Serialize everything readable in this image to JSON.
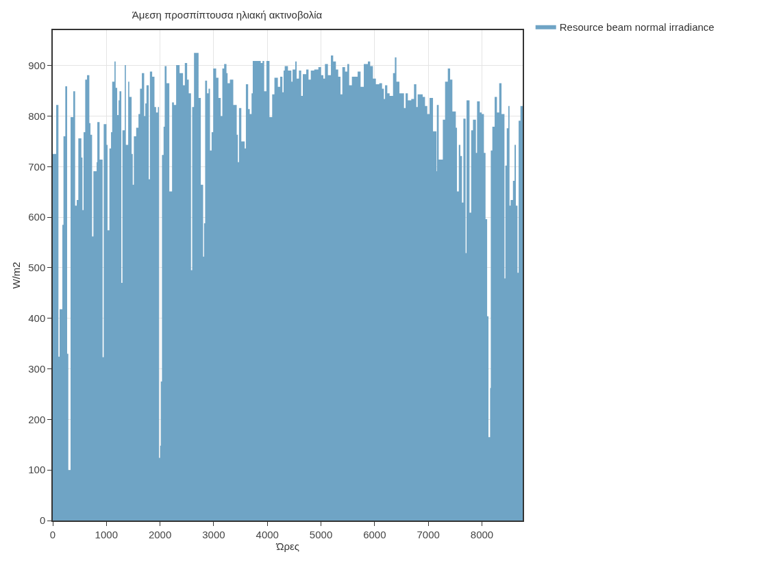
{
  "chart_data": {
    "type": "area",
    "title": "Άμεση προσπίπτουσα ηλιακή ακτινοβολία",
    "xlabel": "Ώρες",
    "ylabel": "W/m2",
    "xlim": [
      0,
      8760
    ],
    "xticks": [
      0,
      1000,
      2000,
      3000,
      4000,
      5000,
      6000,
      7000,
      8000
    ],
    "ylim": [
      0,
      970
    ],
    "yticks": [
      0,
      100,
      200,
      300,
      400,
      500,
      600,
      700,
      800,
      900
    ],
    "grid": true,
    "legend": "top right",
    "series": [
      {
        "name": "Resource beam normal irradiance",
        "color": "#6fa4c5",
        "x": [
          0,
          64,
          106,
          128,
          179,
          200,
          234,
          268,
          290,
          332,
          383,
          417,
          447,
          477,
          533,
          554,
          575,
          605,
          639,
          682,
          703,
          733,
          758,
          818,
          831,
          873,
          929,
          950,
          1001,
          1022,
          1056,
          1086,
          1108,
          1150,
          1172,
          1201,
          1227,
          1244,
          1278,
          1299,
          1342,
          1363,
          1406,
          1427,
          1470,
          1491,
          1512,
          1555,
          1598,
          1627,
          1661,
          1704,
          1725,
          1747,
          1789,
          1811,
          1853,
          1896,
          1926,
          1960,
          1981,
          2002,
          2015,
          2036,
          2066,
          2087,
          2121,
          2173,
          2224,
          2258,
          2300,
          2364,
          2428,
          2462,
          2505,
          2535,
          2577,
          2599,
          2633,
          2718,
          2760,
          2803,
          2820,
          2841,
          2876,
          2905,
          2931,
          2961,
          2991,
          3046,
          3089,
          3131,
          3161,
          3195,
          3238,
          3259,
          3302,
          3365,
          3429,
          3451,
          3472,
          3515,
          3578,
          3600,
          3642,
          3672,
          3706,
          3728,
          3877,
          3911,
          3941,
          3983,
          4040,
          4090,
          4132,
          4196,
          4239,
          4281,
          4303,
          4324,
          4384,
          4448,
          4470,
          4521,
          4546,
          4589,
          4631,
          4661,
          4725,
          4768,
          4810,
          4874,
          4951,
          5002,
          5044,
          5074,
          5129,
          5185,
          5227,
          5278,
          5321,
          5364,
          5398,
          5449,
          5491,
          5525,
          5576,
          5683,
          5738,
          5798,
          5874,
          5917,
          5968,
          6023,
          6087,
          6138,
          6172,
          6194,
          6236,
          6279,
          6343,
          6377,
          6406,
          6462,
          6547,
          6577,
          6619,
          6683,
          6734,
          6777,
          6802,
          6896,
          6939,
          6981,
          7024,
          7088,
          7151,
          7160,
          7194,
          7271,
          7313,
          7364,
          7407,
          7449,
          7513,
          7535,
          7569,
          7598,
          7628,
          7654,
          7696,
          7713,
          7769,
          7799,
          7833,
          7888,
          7909,
          7960,
          7994,
          8037,
          8067,
          8097,
          8122,
          8152,
          8165,
          8194,
          8237,
          8280,
          8322,
          8365,
          8420,
          8437,
          8463,
          8492,
          8514,
          8535,
          8578,
          8608,
          8633,
          8663,
          8684,
          8718,
          8760
        ],
        "values": [
          725,
          822,
          324,
          418,
          585,
          760,
          859,
          330,
          100,
          798,
          849,
          623,
          634,
          756,
          718,
          614,
          768,
          872,
          881,
          786,
          763,
          562,
          691,
          709,
          788,
          714,
          323,
          784,
          743,
          574,
          736,
          768,
          868,
          908,
          856,
          802,
          831,
          849,
          470,
          772,
          901,
          743,
          868,
          838,
          725,
          664,
          760,
          777,
          804,
          854,
          885,
          800,
          825,
          861,
          675,
          888,
          878,
          818,
          807,
          818,
          124,
          148,
          275,
          723,
          779,
          899,
          865,
          651,
          827,
          822,
          901,
          885,
          861,
          905,
          872,
          845,
          495,
          818,
          925,
          836,
          664,
          522,
          588,
          870,
          845,
          854,
          732,
          768,
          894,
          876,
          836,
          800,
          894,
          903,
          885,
          865,
          872,
          822,
          763,
          709,
          816,
          750,
          736,
          863,
          814,
          804,
          845,
          909,
          905,
          909,
          849,
          909,
          798,
          843,
          876,
          858,
          878,
          847,
          890,
          899,
          890,
          868,
          892,
          908,
          874,
          890,
          840,
          883,
          892,
          872,
          890,
          892,
          897,
          881,
          874,
          903,
          881,
          920,
          908,
          892,
          878,
          843,
          897,
          888,
          903,
          861,
          878,
          888,
          858,
          903,
          908,
          899,
          874,
          863,
          865,
          854,
          834,
          861,
          845,
          840,
          885,
          916,
          868,
          845,
          816,
          845,
          831,
          834,
          863,
          818,
          843,
          838,
          820,
          804,
          836,
          770,
          691,
          822,
          714,
          793,
          868,
          894,
          872,
          809,
          777,
          651,
          743,
          721,
          629,
          795,
          529,
          831,
          609,
          772,
          793,
          727,
          829,
          807,
          804,
          727,
          596,
          404,
          165,
          262,
          732,
          779,
          838,
          807,
          865,
          804,
          479,
          702,
          776,
          820,
          623,
          634,
          672,
          743,
          623,
          490,
          791,
          820,
          820
        ]
      }
    ]
  }
}
